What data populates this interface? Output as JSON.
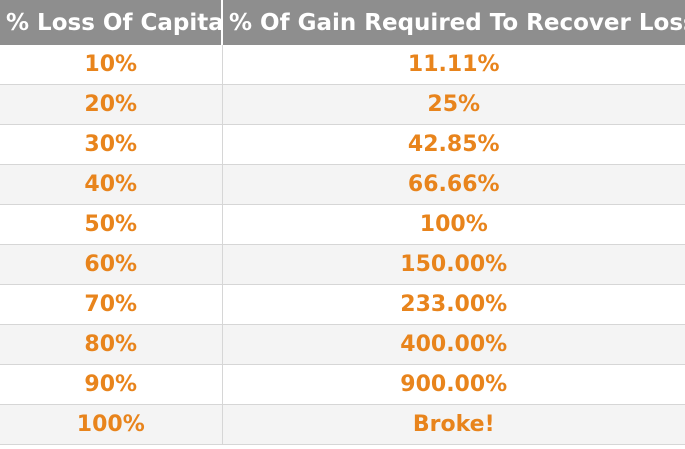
{
  "chart_data": {
    "type": "table",
    "columns": [
      "% Loss Of Capital",
      "% Of Gain Required To Recover Loss"
    ],
    "rows": [
      [
        "10%",
        "11.11%"
      ],
      [
        "20%",
        "25%"
      ],
      [
        "30%",
        "42.85%"
      ],
      [
        "40%",
        "66.66%"
      ],
      [
        "50%",
        "100%"
      ],
      [
        "60%",
        "150.00%"
      ],
      [
        "70%",
        "233.00%"
      ],
      [
        "80%",
        "400.00%"
      ],
      [
        "90%",
        "900.00%"
      ],
      [
        "100%",
        "Broke!"
      ]
    ]
  },
  "colors": {
    "header_bg": "#8e8e8e",
    "header_text": "#ffffff",
    "value_text": "#e8841c",
    "grid_line": "#d6d6d6"
  }
}
